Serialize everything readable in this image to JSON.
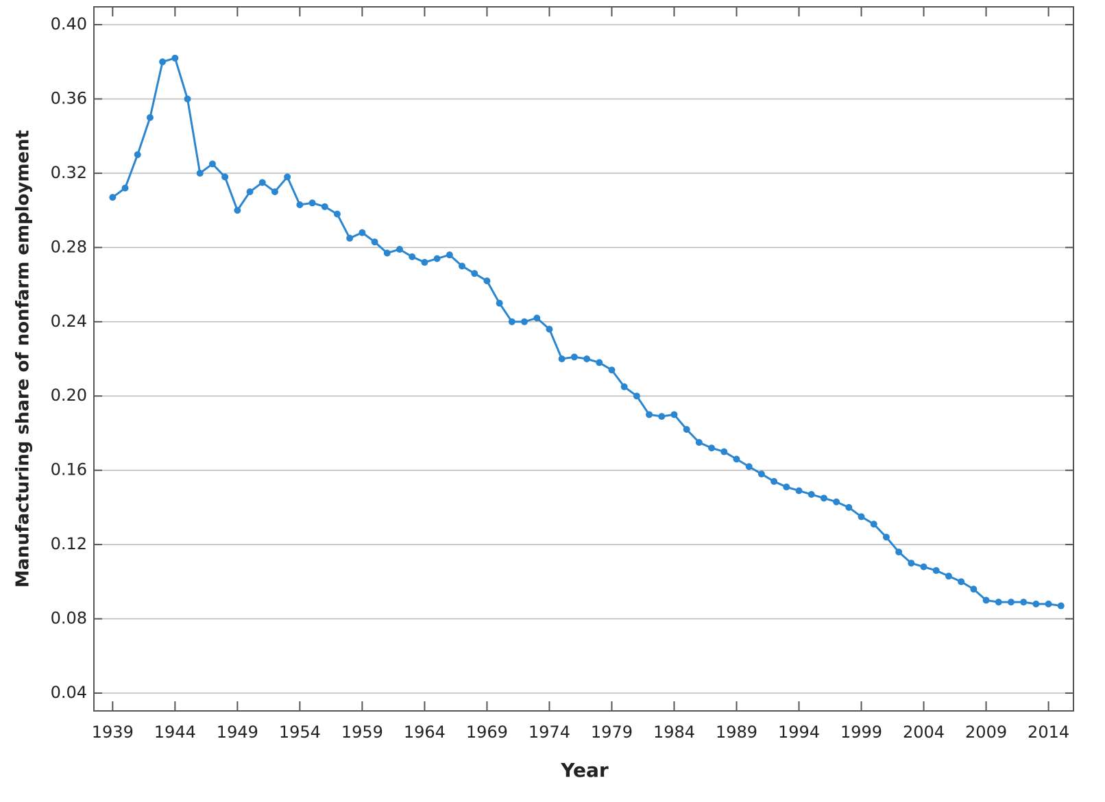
{
  "chart_data": {
    "type": "line",
    "x_label": "Year",
    "y_label": "Manufacturing share of nonfarm employment",
    "xlim": [
      1937.5,
      2016
    ],
    "ylim": [
      0.0304,
      0.4096
    ],
    "xticks": [
      1939,
      1944,
      1949,
      1954,
      1959,
      1964,
      1969,
      1974,
      1979,
      1984,
      1989,
      1994,
      1999,
      2004,
      2009,
      2014
    ],
    "yticks": [
      0.04,
      0.08,
      0.12,
      0.16,
      {
        "value": 0.2,
        "label": "0.20"
      },
      0.24,
      0.28,
      0.32,
      0.36,
      {
        "value": 0.4,
        "label": "0.40"
      }
    ],
    "grid": true,
    "color": "#2a86d1",
    "x": [
      1939,
      1940,
      1941,
      1942,
      1943,
      1944,
      1945,
      1946,
      1947,
      1948,
      1949,
      1950,
      1951,
      1952,
      1953,
      1954,
      1955,
      1956,
      1957,
      1958,
      1959,
      1960,
      1961,
      1962,
      1963,
      1964,
      1965,
      1966,
      1967,
      1968,
      1969,
      1970,
      1971,
      1972,
      1973,
      1974,
      1975,
      1976,
      1977,
      1978,
      1979,
      1980,
      1981,
      1982,
      1983,
      1984,
      1985,
      1986,
      1987,
      1988,
      1989,
      1990,
      1991,
      1992,
      1993,
      1994,
      1995,
      1996,
      1997,
      1998,
      1999,
      2000,
      2001,
      2002,
      2003,
      2004,
      2005,
      2006,
      2007,
      2008,
      2009,
      2010,
      2011,
      2012,
      2013,
      2014,
      2015
    ],
    "values": [
      0.307,
      0.312,
      0.33,
      0.35,
      0.38,
      0.382,
      0.36,
      0.32,
      0.325,
      0.318,
      0.3,
      0.31,
      0.315,
      0.31,
      0.318,
      0.303,
      0.304,
      0.302,
      0.298,
      0.285,
      0.288,
      0.283,
      0.277,
      0.279,
      0.275,
      0.272,
      0.274,
      0.276,
      0.27,
      0.266,
      0.262,
      0.25,
      0.24,
      0.24,
      0.242,
      0.236,
      0.22,
      0.221,
      0.22,
      0.218,
      0.214,
      0.205,
      0.2,
      0.19,
      0.189,
      0.19,
      0.182,
      0.175,
      0.172,
      0.17,
      0.166,
      0.162,
      0.158,
      0.154,
      0.151,
      0.149,
      0.147,
      0.145,
      0.143,
      0.14,
      0.135,
      0.131,
      0.124,
      0.116,
      0.11,
      0.108,
      0.106,
      0.103,
      0.1,
      0.096,
      0.09,
      0.089,
      0.089,
      0.089,
      0.088,
      0.088,
      0.087
    ]
  }
}
